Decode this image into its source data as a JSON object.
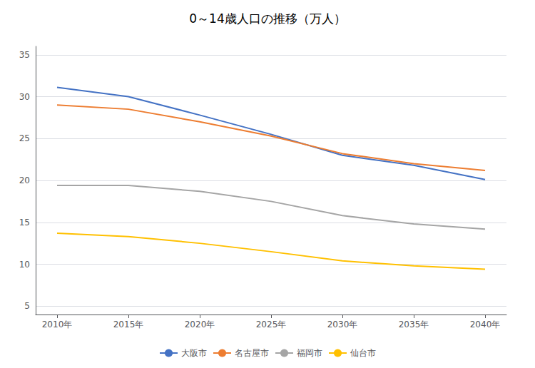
{
  "chart_data": {
    "type": "line",
    "title": "0～14歳人口の推移（万人）",
    "x": [
      2010,
      2015,
      2020,
      2025,
      2030,
      2035,
      2040
    ],
    "xlim": [
      2008.5,
      2041.5
    ],
    "xticks": [
      {
        "value": 2010,
        "label": "2010年"
      },
      {
        "value": 2015,
        "label": "2015年"
      },
      {
        "value": 2020,
        "label": "2020年"
      },
      {
        "value": 2025,
        "label": "2025年"
      },
      {
        "value": 2030,
        "label": "2030年"
      },
      {
        "value": 2035,
        "label": "2035年"
      },
      {
        "value": 2040,
        "label": "2040年"
      }
    ],
    "series": [
      {
        "name": "大阪市",
        "color": "#4472C4",
        "values": [
          31.1,
          30.0,
          27.8,
          25.5,
          23.0,
          21.8,
          20.1
        ]
      },
      {
        "name": "名古屋市",
        "color": "#ED7D31",
        "values": [
          29.0,
          28.5,
          27.0,
          25.3,
          23.2,
          22.0,
          21.2
        ]
      },
      {
        "name": "福岡市",
        "color": "#A5A5A5",
        "values": [
          19.4,
          19.4,
          18.7,
          17.5,
          15.8,
          14.8,
          14.2
        ]
      },
      {
        "name": "仙台市",
        "color": "#FFC000",
        "values": [
          13.7,
          13.3,
          12.5,
          11.5,
          10.4,
          9.8,
          9.4
        ]
      }
    ],
    "ylim": [
      4,
      36
    ],
    "yticks": [
      5,
      10,
      15,
      20,
      25,
      30,
      35
    ],
    "grid": true,
    "legend": "bottom"
  }
}
